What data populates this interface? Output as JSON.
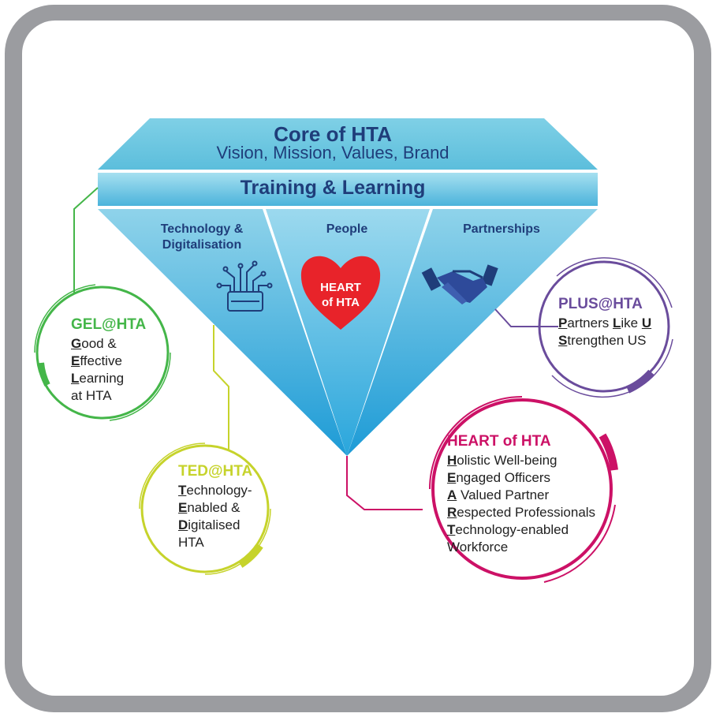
{
  "core": {
    "title": "Core of HTA",
    "subtitle": "Vision, Mission, Values, Brand"
  },
  "band": {
    "label": "Training & Learning"
  },
  "segments": [
    {
      "line1": "Technology &",
      "line2": "Digitalisation",
      "icon": "circuit-chip-icon"
    },
    {
      "line1": "People",
      "icon": "heart-icon",
      "icon_text1": "HEART",
      "icon_text2": "of HTA"
    },
    {
      "line1": "Partnerships",
      "icon": "handshake-icon"
    }
  ],
  "circles": {
    "gel": {
      "title": "GEL@HTA",
      "color": "#44b649",
      "lines": [
        {
          "first": "G",
          "rest": "ood &"
        },
        {
          "first": "E",
          "rest": "ffective"
        },
        {
          "first": "L",
          "rest": "earning"
        },
        {
          "first": "",
          "rest": "at HTA"
        }
      ]
    },
    "ted": {
      "title": "TED@HTA",
      "color": "#c6d32b",
      "lines": [
        {
          "first": "T",
          "rest": "echnology-"
        },
        {
          "first": "E",
          "rest": "nabled &"
        },
        {
          "first": "D",
          "rest": "igitalised"
        },
        {
          "first": "",
          "rest": "HTA"
        }
      ]
    },
    "plus": {
      "title": "PLUS@HTA",
      "color": "#6a4c9c",
      "lines": [
        {
          "first": "P",
          "rest": "artners ",
          "first2": "L",
          "rest2": "ike ",
          "first3": "U",
          "rest3": ""
        },
        {
          "first": "S",
          "rest": "trengthen US"
        }
      ]
    },
    "heart": {
      "title": "HEART of HTA",
      "color": "#cc1166",
      "lines": [
        {
          "first": "H",
          "rest": "olistic Well-being"
        },
        {
          "first": "E",
          "rest": "ngaged Officers"
        },
        {
          "first": "A",
          "rest": " Valued Partner"
        },
        {
          "first": "R",
          "rest": "espected Professionals"
        },
        {
          "first": "T",
          "rest": "echnology-enabled"
        },
        {
          "first": "",
          "rest": "Workforce"
        }
      ]
    }
  },
  "colors": {
    "frame": "#9b9ca0",
    "diamond_top": "#6cc8e0",
    "diamond_bottom": "#1f9fd8",
    "heart": "#e8232a",
    "text_dark": "#1f3d7a"
  }
}
